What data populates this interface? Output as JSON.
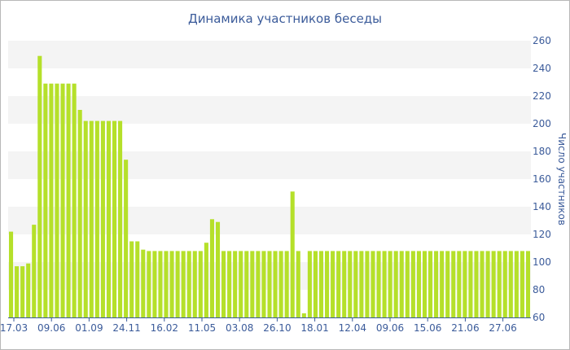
{
  "chart_data": {
    "type": "bar",
    "title": "Динамика участников беседы",
    "ylabel": "Число участников",
    "xlabel": "",
    "ylim": [
      60,
      260
    ],
    "yticks": [
      60,
      80,
      100,
      120,
      140,
      160,
      180,
      200,
      220,
      240,
      260
    ],
    "xtick_labels": [
      "17.03",
      "09.06",
      "01.09",
      "24.11",
      "16.02",
      "11.05",
      "03.08",
      "26.10",
      "18.01",
      "12.04",
      "09.06",
      "15.06",
      "21.06",
      "27.06"
    ],
    "grid": "alternating horizontal bands",
    "bar_color": "#b5e02a",
    "values": [
      122,
      97,
      97,
      99,
      127,
      249,
      229,
      229,
      229,
      229,
      229,
      229,
      210,
      202,
      202,
      202,
      202,
      202,
      202,
      202,
      174,
      115,
      115,
      109,
      108,
      108,
      108,
      108,
      108,
      108,
      108,
      108,
      108,
      108,
      114,
      131,
      129,
      108,
      108,
      108,
      108,
      108,
      108,
      108,
      108,
      108,
      108,
      108,
      108,
      151,
      108,
      63,
      108,
      108,
      108,
      108,
      108,
      108,
      108,
      108,
      108,
      108,
      108,
      108,
      108,
      108,
      108,
      108,
      108,
      108,
      108,
      108,
      108,
      108,
      108,
      108,
      108,
      108,
      108,
      108,
      108,
      108,
      108,
      108,
      108,
      108,
      108,
      108,
      108,
      108,
      108
    ]
  }
}
